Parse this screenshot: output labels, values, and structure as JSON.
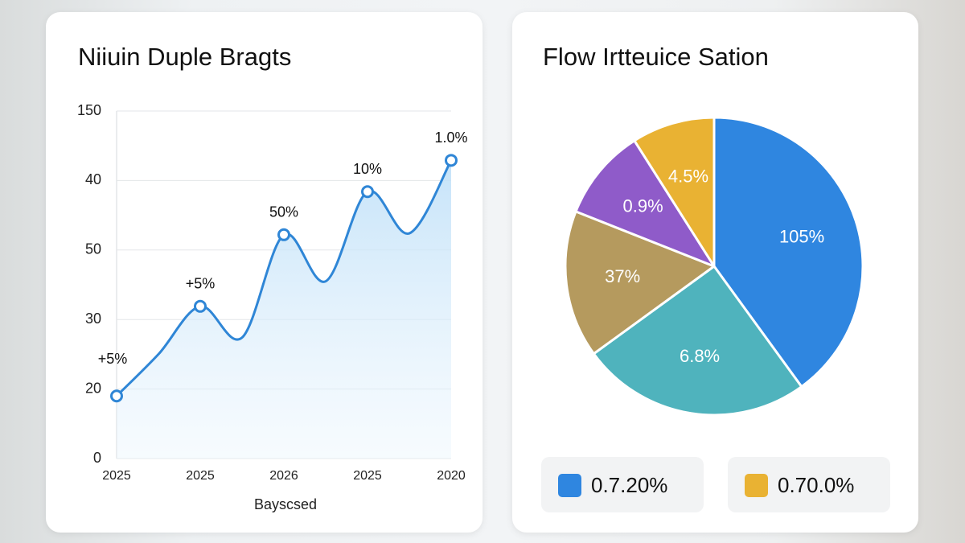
{
  "chart_data": [
    {
      "type": "line",
      "title": "Niiuin Duple Bragts",
      "x_label": "Bayscsed",
      "categories": [
        "2025",
        null,
        "2025",
        null,
        "2026",
        null,
        "2025",
        null,
        "2020"
      ],
      "values": [
        0.9,
        1.5,
        2.19,
        1.74,
        3.22,
        2.55,
        3.84,
        3.24,
        4.29
      ],
      "point_labels": [
        "+5%",
        null,
        "+5%",
        null,
        "50%",
        null,
        "10%",
        null,
        "1.0%"
      ],
      "color": "#2f86d6",
      "ylim": [
        0,
        5
      ],
      "yticks": [
        {
          "value": 0,
          "label": "0"
        },
        {
          "value": 1,
          "label": "20"
        },
        {
          "value": 2,
          "label": "30"
        },
        {
          "value": 3,
          "label": "50"
        },
        {
          "value": 4,
          "label": "40"
        },
        {
          "value": 5,
          "label": "150"
        }
      ],
      "grid": true
    },
    {
      "type": "pie",
      "title": "Flow Irtteuice Sation",
      "values": [
        40,
        25,
        16,
        10,
        9
      ],
      "labels": [
        "105%",
        "6.8%",
        "37%",
        "0.9%",
        "4.5%"
      ],
      "colors": [
        "#2f86e0",
        "#4fb3bd",
        "#b59a5e",
        "#8f5bc9",
        "#e9b233"
      ],
      "legend": [
        {
          "color": "#2f86e0",
          "label": "0.7.20%"
        },
        {
          "color": "#e9b233",
          "label": "0.70.0%"
        }
      ]
    }
  ]
}
